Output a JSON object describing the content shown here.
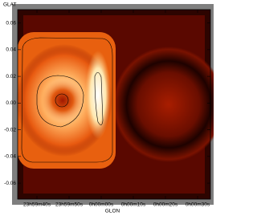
{
  "chart_data": {
    "type": "image",
    "title": "GLAT",
    "x_label": "GLON",
    "ylim": [
      -0.072,
      0.07
    ],
    "yticks": [
      0.06,
      0.04,
      0.02,
      {
        "value": 0,
        "label": "0.00"
      },
      -0.02,
      -0.04,
      -0.06
    ],
    "xlim": [
      -26,
      34
    ],
    "xticks": [
      {
        "value": -20,
        "label": "23h59m40s"
      },
      {
        "value": -10,
        "label": "23h59m50s"
      },
      {
        "value": 0,
        "label": "0h00m00s"
      },
      {
        "value": 10,
        "label": "0h00m10s"
      },
      {
        "value": 20,
        "label": "0h00m20s"
      },
      {
        "value": 30,
        "label": "0h00m30s"
      }
    ]
  }
}
